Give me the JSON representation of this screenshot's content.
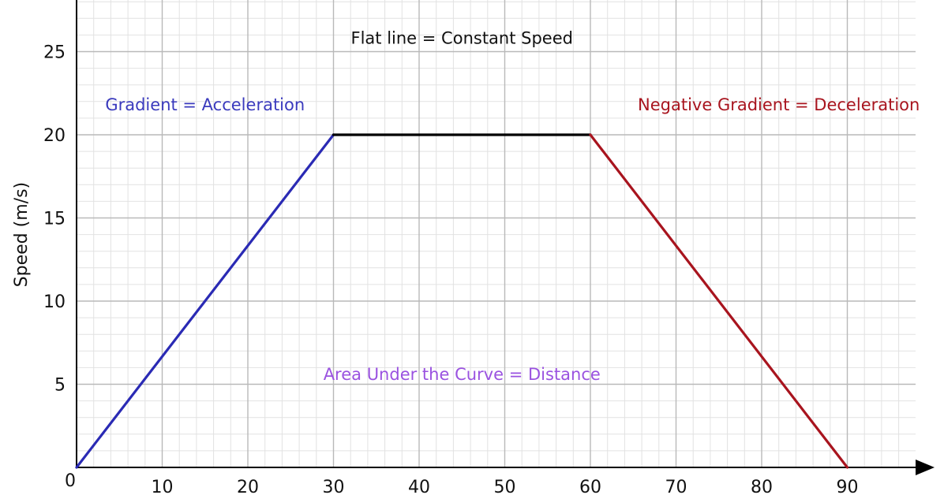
{
  "chart_data": {
    "type": "line",
    "title": "",
    "xlabel": "",
    "ylabel": "Speed (m/s)",
    "xlim": [
      0,
      100
    ],
    "ylim": [
      0,
      28
    ],
    "grid": true,
    "origin_label": "0",
    "x_ticks": [
      10,
      20,
      30,
      40,
      50,
      60,
      70,
      80,
      90
    ],
    "y_ticks": [
      5,
      10,
      15,
      20,
      25
    ],
    "series": [
      {
        "x": [
          0,
          30
        ],
        "y": [
          0,
          20
        ],
        "color": "#2a2ab4"
      },
      {
        "x": [
          30,
          60
        ],
        "y": [
          20,
          20
        ],
        "color": "#000000"
      },
      {
        "x": [
          60,
          90
        ],
        "y": [
          20,
          0
        ],
        "color": "#a8141e"
      }
    ],
    "annotations": [
      {
        "text": "Flat line = Constant Speed",
        "x": 45,
        "y": 25.8,
        "color": "#111111"
      },
      {
        "text": "Gradient = Acceleration",
        "x": 15,
        "y": 21.8,
        "color": "#3a3abd"
      },
      {
        "text": "Negative Gradient = Deceleration",
        "x": 82,
        "y": 21.8,
        "color": "#a8141e"
      },
      {
        "text": "Area Under the Curve = Distance",
        "x": 45,
        "y": 5.6,
        "color": "#9a52e0"
      }
    ]
  }
}
